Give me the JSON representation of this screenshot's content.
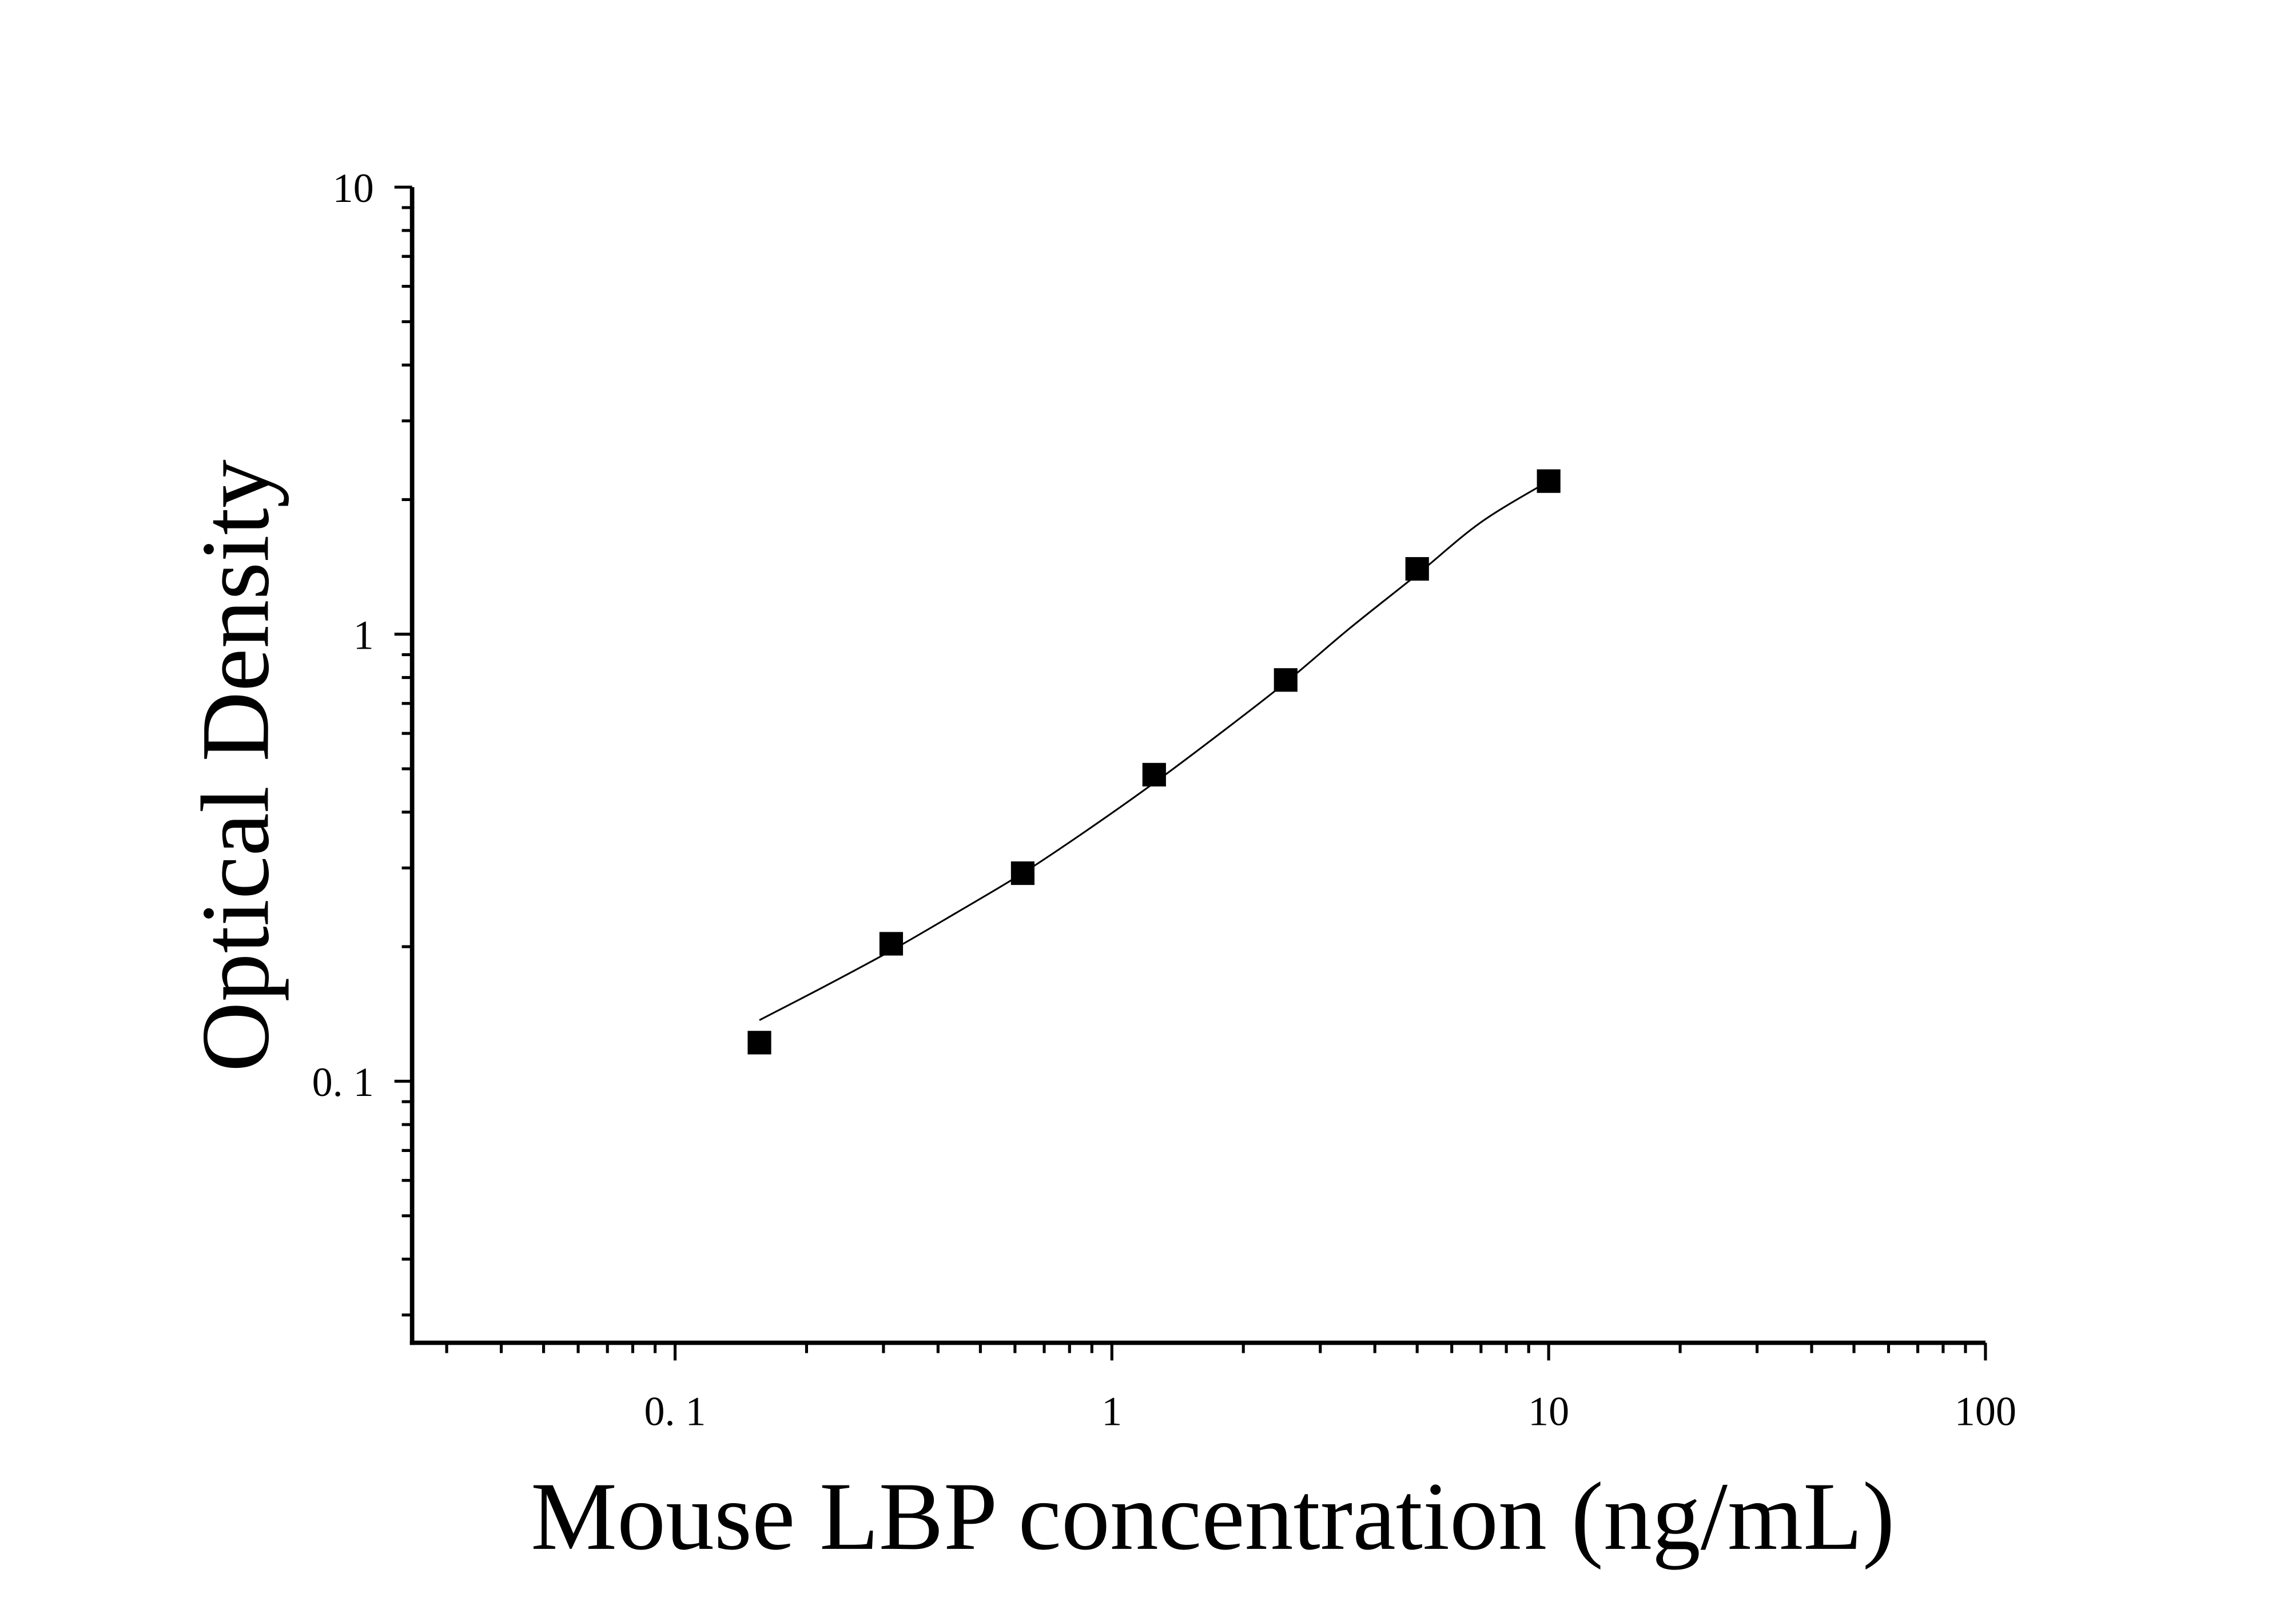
{
  "chart_data": {
    "type": "scatter",
    "title": "",
    "xlabel": "Mouse LBP concentration (ng/mL)",
    "ylabel": "Optical Density",
    "x_scale": "log",
    "y_scale": "log",
    "xlim": [
      0.025,
      100
    ],
    "ylim": [
      0.026,
      10
    ],
    "x_ticks": [
      {
        "value": 0.1,
        "label": "0. 1"
      },
      {
        "value": 1,
        "label": "1"
      },
      {
        "value": 10,
        "label": "10"
      },
      {
        "value": 100,
        "label": "100"
      }
    ],
    "y_ticks": [
      {
        "value": 0.1,
        "label": "0. 1"
      },
      {
        "value": 1,
        "label": "1"
      },
      {
        "value": 10,
        "label": "10"
      }
    ],
    "grid": false,
    "series": [
      {
        "marker": "square",
        "color": "#000000",
        "x": [
          0.156,
          0.3125,
          0.625,
          1.25,
          2.5,
          5,
          10
        ],
        "y": [
          0.122,
          0.203,
          0.292,
          0.485,
          0.79,
          1.4,
          2.2
        ]
      }
    ],
    "fit_curve": {
      "color": "#000000",
      "x": [
        0.156,
        0.22,
        0.3125,
        0.44,
        0.625,
        0.88,
        1.25,
        1.77,
        2.5,
        3.5,
        5,
        7,
        10
      ],
      "y": [
        0.137,
        0.163,
        0.196,
        0.238,
        0.292,
        0.365,
        0.465,
        0.6,
        0.78,
        1.03,
        1.36,
        1.78,
        2.2
      ]
    }
  }
}
